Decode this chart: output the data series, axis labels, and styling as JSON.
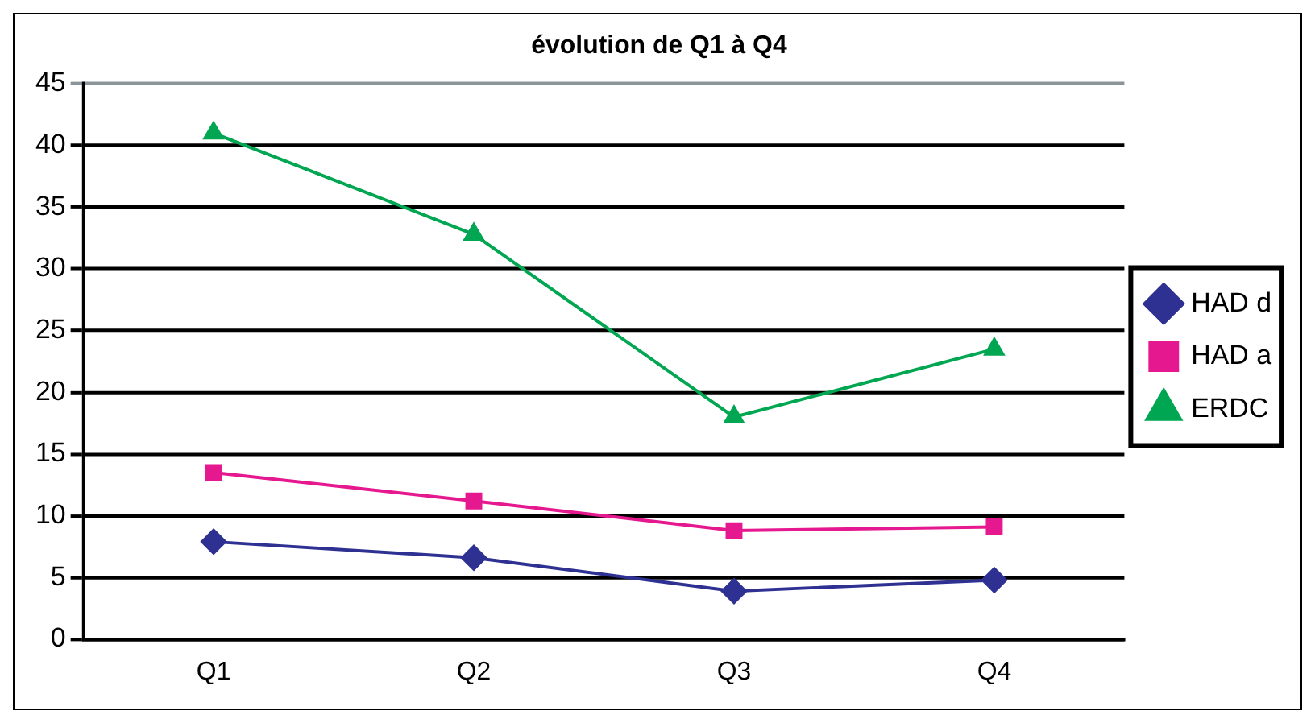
{
  "chart_data": {
    "type": "line",
    "title": "évolution de Q1 à Q4",
    "categories": [
      "Q1",
      "Q2",
      "Q3",
      "Q4"
    ],
    "series": [
      {
        "name": "HAD d",
        "color": "#2e3192",
        "marker": "diamond",
        "values": [
          7.9,
          6.6,
          3.9,
          4.8
        ]
      },
      {
        "name": "HAD a",
        "color": "#e6188f",
        "marker": "square",
        "values": [
          13.5,
          11.2,
          8.8,
          9.1
        ]
      },
      {
        "name": "ERDC",
        "color": "#00a651",
        "marker": "triangle",
        "values": [
          41,
          32.8,
          18,
          23.5
        ]
      }
    ],
    "ylim": [
      0,
      45
    ],
    "yticks": [
      0,
      5,
      10,
      15,
      20,
      25,
      30,
      35,
      40,
      45
    ],
    "grid": "y",
    "legend": "right"
  }
}
